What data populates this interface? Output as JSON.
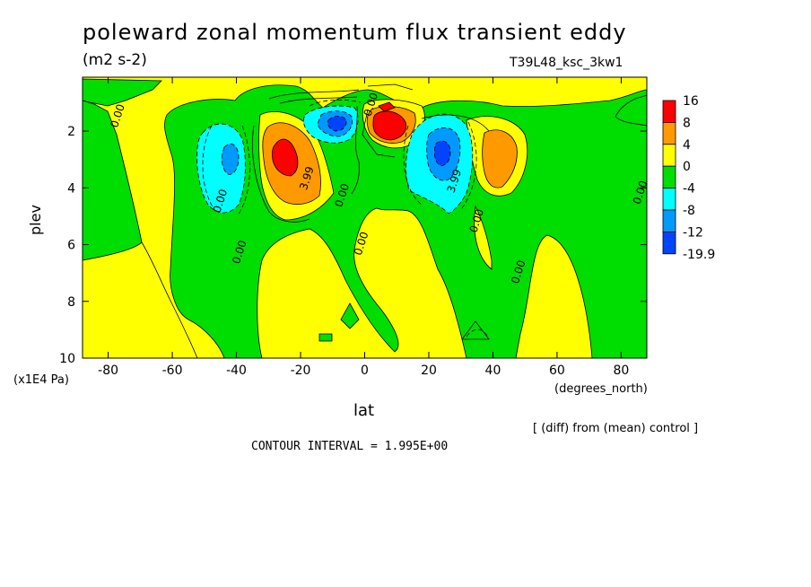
{
  "title": "poleward zonal momentum flux transient eddy",
  "units": "(m2 s-2)",
  "run_label": "T39L48_ksc_3kw1",
  "ylabel": "plev",
  "y_unit": "(x1E4 Pa)",
  "xlabel": "lat",
  "x_unit": "(degrees_north)",
  "note": "[ (diff) from (mean) control ]",
  "contour_interval": "CONTOUR INTERVAL = 1.995E+00",
  "chart_data": {
    "type": "heatmap",
    "title": "poleward zonal momentum flux transient eddy",
    "xlabel": "lat",
    "ylabel": "plev",
    "xlim": [
      -88,
      88
    ],
    "ylim": [
      10,
      0.1
    ],
    "x_ticks": [
      -80,
      -60,
      -40,
      -20,
      0,
      20,
      40,
      60,
      80
    ],
    "y_ticks": [
      2,
      4,
      6,
      8,
      10
    ],
    "colorbar": {
      "levels": [
        "16",
        "8",
        "4",
        "0",
        "-4",
        "-8",
        "-12",
        "-19.9"
      ],
      "colors": [
        "#ff0000",
        "#ff9900",
        "#ffff00",
        "#00dd00",
        "#00ffff",
        "#0099ff",
        "#0044ff"
      ]
    },
    "contour_labels": [
      {
        "lat": -76,
        "plev": 1.5,
        "text": "0.00"
      },
      {
        "lat": -44,
        "plev": 4.5,
        "text": "0.00"
      },
      {
        "lat": -38,
        "plev": 6.3,
        "text": "0.00"
      },
      {
        "lat": -17,
        "plev": 3.7,
        "text": "3.99"
      },
      {
        "lat": -6,
        "plev": 4.3,
        "text": "0.00"
      },
      {
        "lat": 0,
        "plev": 6.0,
        "text": "0.00"
      },
      {
        "lat": 3,
        "plev": 1.1,
        "text": "0.00"
      },
      {
        "lat": 29,
        "plev": 3.8,
        "text": "3.99"
      },
      {
        "lat": 36,
        "plev": 5.2,
        "text": "0.00"
      },
      {
        "lat": 49,
        "plev": 7.0,
        "text": "0.00"
      },
      {
        "lat": 87,
        "plev": 4.2,
        "text": "0.00"
      }
    ],
    "extrema": [
      {
        "lat": -27,
        "plev": 2.8,
        "sign": "positive",
        "peak": ">8"
      },
      {
        "lat": 6,
        "plev": 1.9,
        "sign": "positive",
        "peak": ">16"
      },
      {
        "lat": 43,
        "plev": 2.8,
        "sign": "positive",
        "peak": ">4"
      },
      {
        "lat": -44,
        "plev": 2.9,
        "sign": "negative",
        "peak": "<-8"
      },
      {
        "lat": -8,
        "plev": 1.9,
        "sign": "negative",
        "peak": "<-12"
      },
      {
        "lat": 25,
        "plev": 2.9,
        "sign": "negative",
        "peak": "<-12"
      }
    ]
  }
}
